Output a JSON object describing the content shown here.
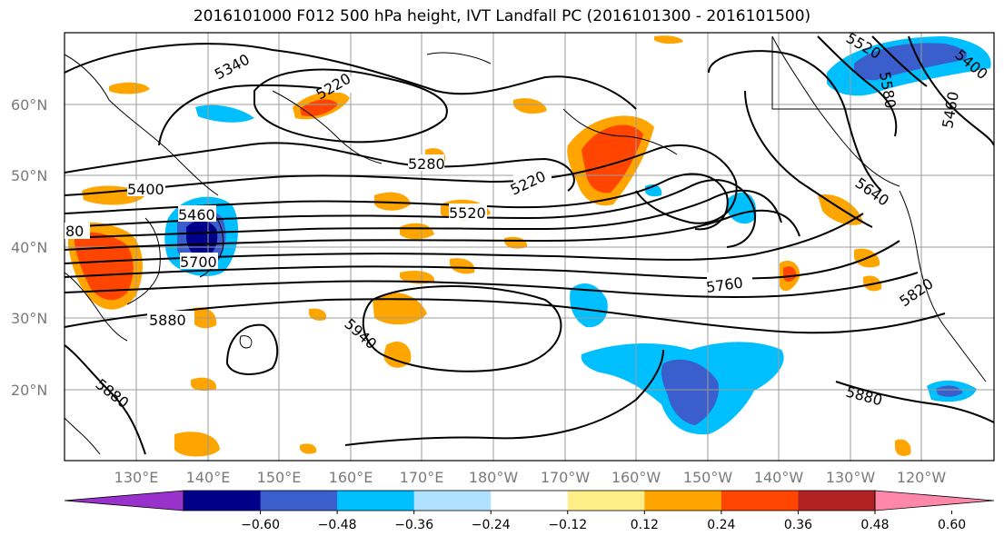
{
  "title": "2016101000 F012 500 hPa height, IVT Landfall PC (2016101300 - 2016101500)",
  "lat_labels": [
    "60°N",
    "50°N",
    "40°N",
    "30°N",
    "20°N"
  ],
  "lon_labels": [
    "130°E",
    "140°E",
    "150°E",
    "160°E",
    "170°E",
    "180°W",
    "170°W",
    "160°W",
    "150°W",
    "140°W",
    "130°W",
    "120°W"
  ],
  "contour_labels": [
    "5340",
    "5220",
    "5280",
    "5220",
    "5400",
    "5460",
    "5520",
    "5700",
    "5760",
    "5880",
    "5940",
    "5880",
    "5880",
    "5640",
    "5820",
    "5460",
    "5520",
    "5580",
    "5400",
    "80"
  ],
  "colorbar": {
    "ticks": [
      "−0.60",
      "−0.48",
      "−0.36",
      "−0.24",
      "−0.12",
      "0.12",
      "0.24",
      "0.36",
      "0.48",
      "0.60"
    ],
    "colors": [
      "#9932cc",
      "#00008b",
      "#3a5fcd",
      "#00bfff",
      "#b0e2ff",
      "#ffffff",
      "#ffee88",
      "#ffa500",
      "#ff4500",
      "#b22222",
      "#ff88aa"
    ]
  }
}
